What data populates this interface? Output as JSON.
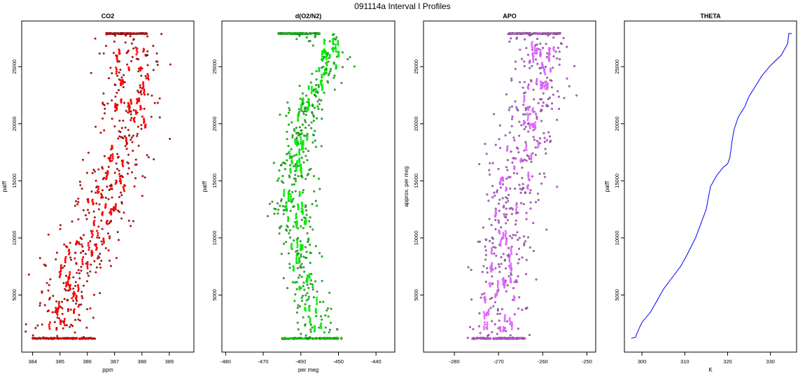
{
  "figure": {
    "title": "091114a   Interval I Profiles"
  },
  "colors": {
    "co2": "#ff0000",
    "o2n2": "#00ee00",
    "apo": "#e066ff",
    "theta": "#0000ff",
    "outline": "#000000"
  },
  "chart_data": [
    {
      "type": "scatter",
      "title": "CO2",
      "xlabel": "ppm",
      "ylabel": "patff",
      "xlim": [
        383.6,
        389.9
      ],
      "ylim": [
        0,
        29000
      ],
      "xticks": [
        384,
        385,
        386,
        387,
        388,
        389
      ],
      "yticks": [
        5000,
        10000,
        15000,
        20000,
        25000
      ],
      "color": "#ff0000",
      "profile": {
        "y": [
          1200,
          3000,
          5000,
          7000,
          9000,
          11000,
          13000,
          15000,
          17000,
          19000,
          21000,
          23000,
          25000,
          27000,
          27900
        ],
        "x": [
          385.0,
          385.1,
          385.3,
          385.6,
          385.9,
          386.3,
          386.6,
          386.9,
          387.3,
          387.5,
          387.6,
          387.6,
          387.6,
          387.6,
          387.6
        ],
        "spread": [
          0.8,
          0.8,
          0.8,
          0.8,
          0.8,
          0.8,
          0.8,
          0.8,
          0.8,
          0.8,
          0.8,
          0.8,
          0.8,
          0.8,
          0.8
        ]
      },
      "dense_rows": [
        {
          "y": 1200,
          "x_range": [
            384.0,
            386.3
          ]
        },
        {
          "y": 27900,
          "x_range": [
            386.7,
            388.2
          ]
        }
      ]
    },
    {
      "type": "scatter",
      "title": "d(O2/N2)",
      "xlabel": "per meg",
      "ylabel": "patff",
      "xlim": [
        -481,
        -435
      ],
      "ylim": [
        0,
        29000
      ],
      "xticks": [
        -480,
        -470,
        -460,
        -450,
        -440
      ],
      "yticks": [
        5000,
        10000,
        15000,
        20000,
        25000
      ],
      "color": "#00ee00",
      "profile": {
        "y": [
          1200,
          3000,
          5000,
          7000,
          9000,
          11000,
          13000,
          15000,
          17000,
          19000,
          21000,
          23000,
          25000,
          27000,
          27900
        ],
        "x": [
          -455,
          -456,
          -459,
          -460,
          -460.5,
          -461,
          -462,
          -462,
          -461,
          -460,
          -459,
          -456,
          -452,
          -452,
          -456
        ],
        "spread": [
          4,
          4,
          3,
          3,
          3,
          3,
          3.5,
          3.5,
          3,
          3,
          3,
          3,
          3,
          3,
          4
        ]
      },
      "dense_rows": [
        {
          "y": 1200,
          "x_range": [
            -465,
            -449
          ]
        },
        {
          "y": 27900,
          "x_range": [
            -466,
            -455
          ]
        }
      ]
    },
    {
      "type": "scatter",
      "title": "APO",
      "xlabel": "",
      "ylabel": "approx. per meg",
      "xlim": [
        -287,
        -248
      ],
      "ylim": [
        0,
        29000
      ],
      "xticks": [
        -280,
        -270,
        -260,
        -250
      ],
      "yticks": [
        5000,
        10000,
        15000,
        20000,
        25000
      ],
      "color": "#e066ff",
      "profile": {
        "y": [
          1200,
          3000,
          5000,
          7000,
          9000,
          11000,
          13000,
          15000,
          17000,
          19000,
          21000,
          23000,
          25000,
          27000,
          27900
        ],
        "x": [
          -270,
          -270,
          -270,
          -269.5,
          -269,
          -268,
          -267,
          -266,
          -265,
          -264,
          -262,
          -261,
          -260,
          -260,
          -262
        ],
        "spread": [
          4.5,
          4.5,
          4.5,
          4.5,
          4.5,
          4.5,
          4.5,
          4.5,
          4.5,
          4.5,
          4.5,
          4.5,
          4.5,
          4.5,
          4.5
        ]
      },
      "dense_rows": [
        {
          "y": 1200,
          "x_range": [
            -276,
            -264
          ]
        },
        {
          "y": 27900,
          "x_range": [
            -268,
            -256
          ]
        }
      ]
    },
    {
      "type": "line",
      "title": "THETA",
      "xlabel": "K",
      "ylabel": "patff",
      "xlim": [
        295.9,
        336.1
      ],
      "ylim": [
        0,
        29000
      ],
      "xticks": [
        300,
        310,
        320,
        330
      ],
      "yticks": [
        5000,
        10000,
        15000,
        20000,
        25000
      ],
      "color": "#0000ff",
      "line": {
        "y": [
          1200,
          1300,
          1600,
          2200,
          2600,
          3500,
          4500,
          5500,
          6500,
          7500,
          8500,
          10000,
          11500,
          12500,
          13500,
          14500,
          15500,
          16200,
          16500,
          17000,
          17800,
          18400,
          19500,
          20600,
          21500,
          22400,
          23300,
          24200,
          25100,
          26000,
          27000,
          27900,
          27900
        ],
        "x": [
          297.5,
          298.5,
          298.8,
          299.5,
          300.0,
          302.0,
          303.5,
          305.0,
          307.0,
          309.0,
          310.5,
          312.5,
          314.0,
          315.0,
          315.5,
          316.0,
          317.5,
          319.0,
          320.0,
          320.5,
          320.8,
          321.0,
          321.5,
          322.5,
          324.0,
          325.0,
          326.5,
          328.0,
          330.0,
          332.5,
          334.0,
          334.3,
          335.0
        ]
      }
    }
  ]
}
